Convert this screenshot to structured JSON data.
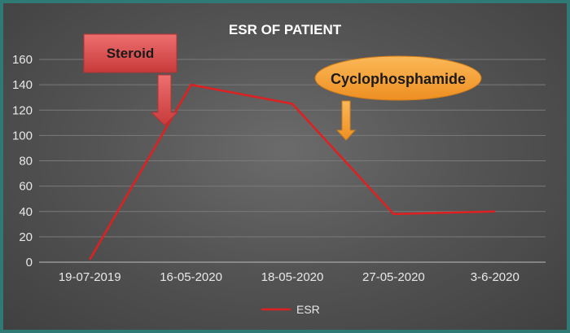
{
  "chart_data": {
    "type": "line",
    "title": "ESR OF PATIENT",
    "categories": [
      "19-07-2019",
      "16-05-2020",
      "18-05-2020",
      "27-05-2020",
      "3-6-2020"
    ],
    "series": [
      {
        "name": "ESR",
        "values": [
          2,
          140,
          125,
          38,
          40
        ],
        "color": "#e02020"
      }
    ],
    "ylim": [
      0,
      160
    ],
    "yticks": [
      0,
      20,
      40,
      60,
      80,
      100,
      120,
      140,
      160
    ],
    "grid": true,
    "legend": "bottom",
    "annotations": [
      {
        "text": "Steroid",
        "shape": "box",
        "fill": "#e25b5b",
        "arrow": "down"
      },
      {
        "text": "Cyclophosphamide",
        "shape": "ellipse",
        "fill": "#f7a23c",
        "arrow": "down"
      }
    ]
  }
}
